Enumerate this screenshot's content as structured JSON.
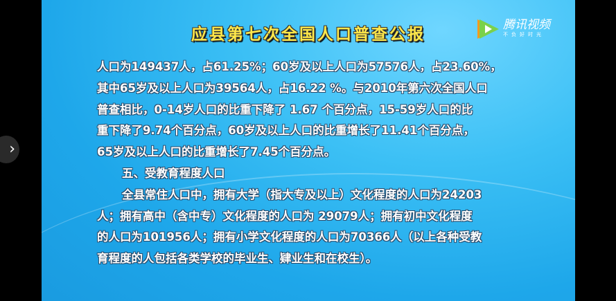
{
  "title": "应县第七次全国人口普查公报",
  "logo": {
    "name": "腾讯视频",
    "slogan": "不负好时光"
  },
  "lines": [
    "人口为149437人，占61.25%；60岁及以上人口为57576人，占23.60%，",
    "其中65岁及以上人口为39564人，占16.22 %。与2010年第六次全国人口",
    "普查相比，0-14岁人口的比重下降了 1.67 个百分点，15-59岁人口的比",
    "重下降了9.74个百分点，60岁及以上人口的比重增长了11.41个百分点，",
    "65岁及以上人口的比重增长了7.45个百分点。",
    "五、受教育程度人口",
    "全县常住人口中，拥有大学（指大专及以上）文化程度的人口为24203",
    "人；拥有高中（含中专）文化程度的人口为 29079人；拥有初中文化程度",
    "的人口为101956人；拥有小学文化程度的人口为70366人（以上各种受教",
    "育程度的人包括各类学校的毕业生、肄业生和在校生）。"
  ],
  "nav": {
    "next_icon": "chevron-right-icon",
    "glyph": "›"
  }
}
